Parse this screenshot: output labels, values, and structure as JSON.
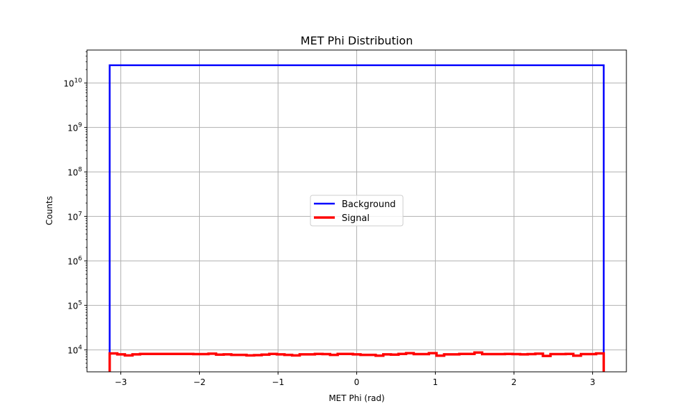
{
  "chart_data": {
    "type": "histogram",
    "title": "MET Phi Distribution",
    "xlabel": "MET Phi (rad)",
    "ylabel": "Counts",
    "xlim": [
      -3.43,
      3.43
    ],
    "ylim": [
      3200,
      55000000000
    ],
    "yscale": "log",
    "grid": true,
    "legend_position": "center",
    "x_ticks": [
      {
        "value": -3,
        "label": "−3"
      },
      {
        "value": -2,
        "label": "−2"
      },
      {
        "value": -1,
        "label": "−1"
      },
      {
        "value": 0,
        "label": "0"
      },
      {
        "value": 1,
        "label": "1"
      },
      {
        "value": 2,
        "label": "2"
      },
      {
        "value": 3,
        "label": "3"
      }
    ],
    "y_ticks": [
      {
        "exp": 4,
        "base": "10",
        "sup": "4"
      },
      {
        "exp": 5,
        "base": "10",
        "sup": "5"
      },
      {
        "exp": 6,
        "base": "10",
        "sup": "6"
      },
      {
        "exp": 7,
        "base": "10",
        "sup": "7"
      },
      {
        "exp": 8,
        "base": "10",
        "sup": "8"
      },
      {
        "exp": 9,
        "base": "10",
        "sup": "9"
      },
      {
        "exp": 10,
        "base": "10",
        "sup": "10"
      }
    ],
    "bin_range": [
      -3.14159,
      3.14159
    ],
    "series": [
      {
        "name": "Background",
        "color": "#0000ff",
        "values": [
          25000000000.0
        ]
      },
      {
        "name": "Signal",
        "color": "#ff0000",
        "values": [
          8300,
          7900,
          7500,
          7900,
          8100,
          8100,
          8100,
          8100,
          8100,
          8100,
          8100,
          8000,
          8000,
          8200,
          7800,
          7900,
          7700,
          7700,
          7500,
          7600,
          7800,
          8100,
          7900,
          7700,
          7500,
          7900,
          7900,
          8100,
          8000,
          7700,
          8100,
          8100,
          7900,
          7700,
          7700,
          7400,
          7900,
          7800,
          8100,
          8400,
          8000,
          8000,
          8400,
          7400,
          7900,
          7900,
          8100,
          8100,
          8700,
          8000,
          8000,
          8000,
          8100,
          8000,
          7900,
          8000,
          8200,
          7300,
          8000,
          8000,
          8100,
          7400,
          8000,
          8000,
          8300
        ]
      }
    ]
  }
}
